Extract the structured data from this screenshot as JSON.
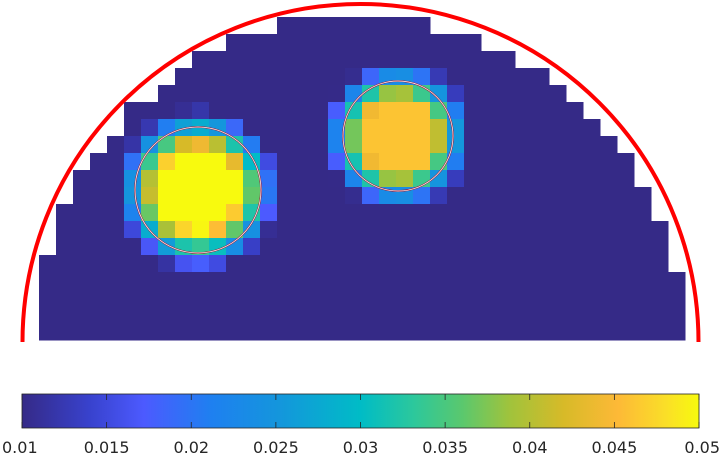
{
  "chart_data": {
    "type": "heatmap",
    "colormap": "parula",
    "color_range": [
      0.01,
      0.05
    ],
    "colorbar": {
      "orientation": "horizontal",
      "placement": "bottom",
      "ticks": [
        "0.01",
        "0.015",
        "0.02",
        "0.025",
        "0.03",
        "0.035",
        "0.04",
        "0.045",
        "0.05"
      ]
    },
    "domain_boundary": {
      "shape": "semicircle",
      "color": "#ff0000"
    },
    "background_value": 0.01,
    "inclusions": [
      {
        "peak_value": 0.05,
        "radius_cells": 4.2,
        "reference_circle": true
      },
      {
        "peak_value": 0.046,
        "radius_cells": 3.8,
        "reference_circle": true
      }
    ]
  }
}
